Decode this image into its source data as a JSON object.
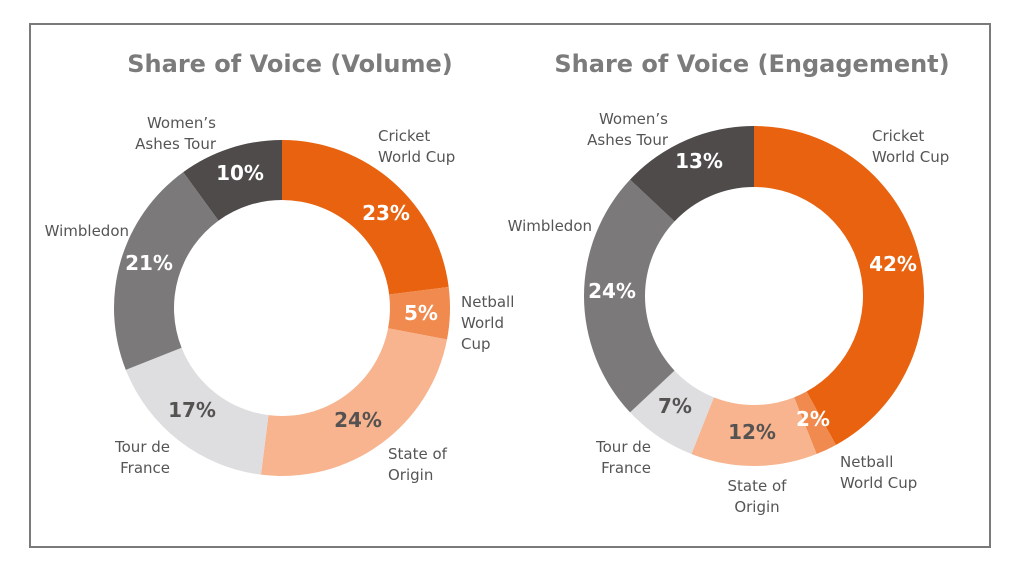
{
  "colors": {
    "Cricket World Cup": "#E8620F",
    "Netball World Cup": "#F08A4E",
    "State of Origin": "#F7B48E",
    "Tour de France": "#DEDDE0",
    "Wimbledon": "#7B7979",
    "Women's Ashes Tour": "#4F4B4A"
  },
  "chart_data": [
    {
      "type": "pie",
      "donut": true,
      "title": "Share of Voice (Volume)",
      "categories": [
        "Cricket World Cup",
        "Netball World Cup",
        "State of Origin",
        "Tour de France",
        "Wimbledon",
        "Women's Ashes Tour"
      ],
      "label_lines": [
        [
          "Cricket",
          "World Cup"
        ],
        [
          "Netball",
          "World",
          "Cup"
        ],
        [
          "State of",
          "Origin"
        ],
        [
          "Tour de",
          "France"
        ],
        [
          "Wimbledon"
        ],
        [
          "Women’s",
          "Ashes Tour"
        ]
      ],
      "values": [
        23,
        5,
        24,
        17,
        21,
        10
      ],
      "value_labels": [
        "23%",
        "5%",
        "24%",
        "17%",
        "21%",
        "10%"
      ],
      "start": "12 o'clock",
      "direction": "clockwise"
    },
    {
      "type": "pie",
      "donut": true,
      "title": "Share of Voice (Engagement)",
      "categories": [
        "Cricket World Cup",
        "Netball World Cup",
        "State of Origin",
        "Tour de France",
        "Wimbledon",
        "Women's Ashes Tour"
      ],
      "label_lines": [
        [
          "Cricket",
          "World Cup"
        ],
        [
          "Netball",
          "World Cup"
        ],
        [
          "State of",
          "Origin"
        ],
        [
          "Tour de",
          "France"
        ],
        [
          "Wimbledon"
        ],
        [
          "Women’s",
          "Ashes Tour"
        ]
      ],
      "values": [
        42,
        2,
        12,
        7,
        24,
        13
      ],
      "value_labels": [
        "42%",
        "2%",
        "12%",
        "7%",
        "24%",
        "13%"
      ],
      "start": "12 o'clock",
      "direction": "clockwise"
    }
  ]
}
